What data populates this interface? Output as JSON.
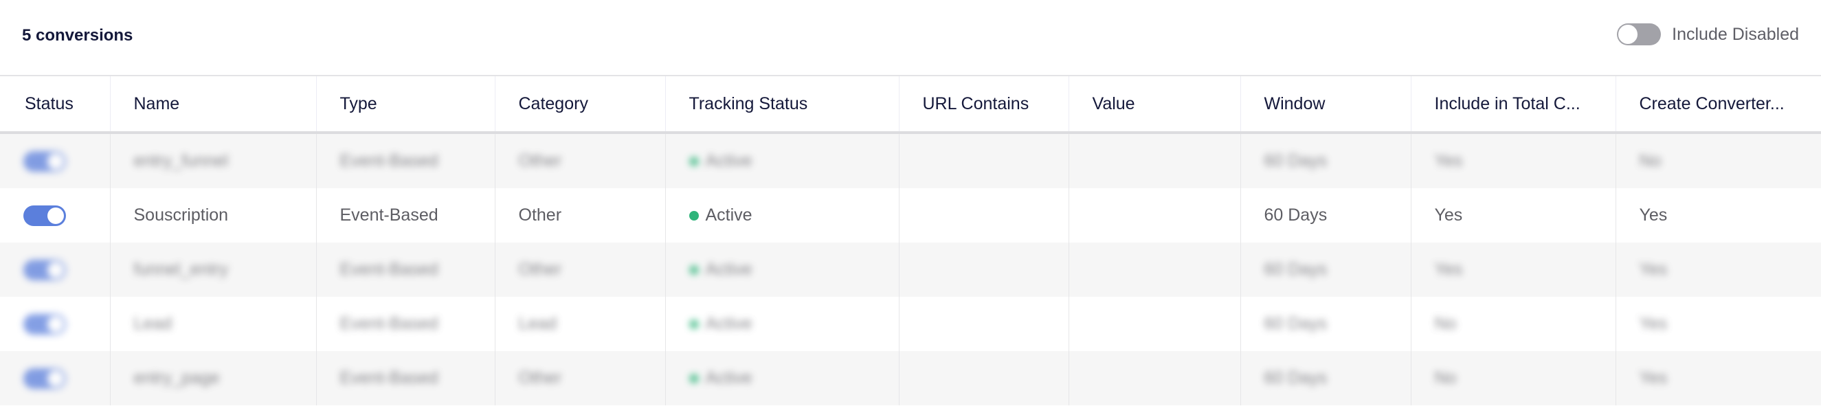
{
  "header": {
    "count_label": "5 conversions",
    "include_disabled_label": "Include Disabled",
    "include_disabled_on": false
  },
  "columns": [
    "Status",
    "Name",
    "Type",
    "Category",
    "Tracking Status",
    "URL Contains",
    "Value",
    "Window",
    "Include in Total C...",
    "Create Converter..."
  ],
  "colors": {
    "toggle_on": "#5b7fdc",
    "active_dot": "#2fb47a"
  },
  "rows": [
    {
      "enabled": true,
      "name": "entry_funnel",
      "type": "Event-Based",
      "category": "Other",
      "tracking": "Active",
      "url": "",
      "value": "",
      "window": "60 Days",
      "include_total": "Yes",
      "create_converter": "No",
      "blurred": true
    },
    {
      "enabled": true,
      "name": "Souscription",
      "type": "Event-Based",
      "category": "Other",
      "tracking": "Active",
      "url": "",
      "value": "",
      "window": "60 Days",
      "include_total": "Yes",
      "create_converter": "Yes",
      "blurred": false
    },
    {
      "enabled": true,
      "name": "funnel_entry",
      "type": "Event-Based",
      "category": "Other",
      "tracking": "Active",
      "url": "",
      "value": "",
      "window": "60 Days",
      "include_total": "Yes",
      "create_converter": "Yes",
      "blurred": true
    },
    {
      "enabled": true,
      "name": "Lead",
      "type": "Event-Based",
      "category": "Lead",
      "tracking": "Active",
      "url": "",
      "value": "",
      "window": "60 Days",
      "include_total": "No",
      "create_converter": "Yes",
      "blurred": true
    },
    {
      "enabled": true,
      "name": "entry_page",
      "type": "Event-Based",
      "category": "Other",
      "tracking": "Active",
      "url": "",
      "value": "",
      "window": "60 Days",
      "include_total": "No",
      "create_converter": "Yes",
      "blurred": true
    }
  ]
}
